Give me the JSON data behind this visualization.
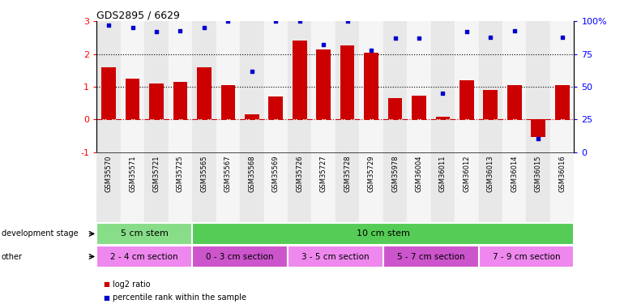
{
  "title": "GDS2895 / 6629",
  "samples": [
    "GSM35570",
    "GSM35571",
    "GSM35721",
    "GSM35725",
    "GSM35565",
    "GSM35567",
    "GSM35568",
    "GSM35569",
    "GSM35726",
    "GSM35727",
    "GSM35728",
    "GSM35729",
    "GSM35978",
    "GSM36004",
    "GSM36011",
    "GSM36012",
    "GSM36013",
    "GSM36014",
    "GSM36015",
    "GSM36016"
  ],
  "log2_ratio": [
    1.6,
    1.25,
    1.1,
    1.15,
    1.6,
    1.05,
    0.15,
    0.7,
    2.4,
    2.15,
    2.25,
    2.05,
    0.65,
    0.72,
    0.07,
    1.2,
    0.9,
    1.05,
    -0.55,
    1.05
  ],
  "percentile": [
    97,
    95,
    92,
    93,
    95,
    100,
    62,
    100,
    100,
    82,
    100,
    78,
    87,
    87,
    45,
    92,
    88,
    93,
    10,
    88
  ],
  "ylim_left": [
    -1,
    3
  ],
  "ylim_right": [
    0,
    100
  ],
  "yticks_left": [
    -1,
    0,
    1,
    2,
    3
  ],
  "yticks_right": [
    0,
    25,
    50,
    75,
    100
  ],
  "yticklabels_right": [
    "0",
    "25",
    "50",
    "75",
    "100%"
  ],
  "bar_color": "#cc0000",
  "scatter_color": "#0000cc",
  "dashed_line_color": "#cc0000",
  "dev_stage_groups": [
    {
      "label": "5 cm stem",
      "start": 0,
      "end": 4,
      "color": "#88dd88"
    },
    {
      "label": "10 cm stem",
      "start": 4,
      "end": 20,
      "color": "#55cc55"
    }
  ],
  "other_groups": [
    {
      "label": "2 - 4 cm section",
      "start": 0,
      "end": 4,
      "color": "#ee88ee"
    },
    {
      "label": "0 - 3 cm section",
      "start": 4,
      "end": 8,
      "color": "#cc55cc"
    },
    {
      "label": "3 - 5 cm section",
      "start": 8,
      "end": 12,
      "color": "#ee88ee"
    },
    {
      "label": "5 - 7 cm section",
      "start": 12,
      "end": 16,
      "color": "#cc55cc"
    },
    {
      "label": "7 - 9 cm section",
      "start": 16,
      "end": 20,
      "color": "#ee88ee"
    }
  ],
  "legend_items": [
    {
      "label": "log2 ratio",
      "color": "#cc0000"
    },
    {
      "label": "percentile rank within the sample",
      "color": "#0000cc"
    }
  ]
}
